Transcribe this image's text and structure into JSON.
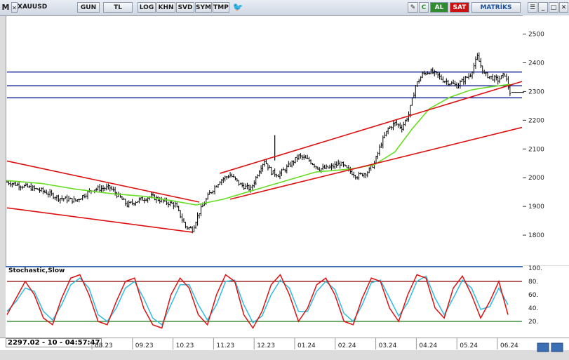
{
  "toolbar": {
    "logo": "M",
    "symbol": "XAUUSD",
    "period": "GUN",
    "currency": "TL",
    "buttons": [
      "LOG",
      "KHN",
      "SVD",
      "SYM",
      "TMP"
    ],
    "buy": "AL",
    "sell": "SAT",
    "brand": "MATRİKS"
  },
  "colors": {
    "buy": "#2e8b2e",
    "sell": "#cc1111",
    "channel": "#dd1111",
    "support": "#1f2a9a",
    "ma": "#66dd22",
    "stoch_k": "#dd1111",
    "stoch_d": "#33bbdd"
  },
  "status": {
    "readout": "2297.02 - 10 - 04:57:47"
  },
  "chart_data": [
    {
      "type": "candlestick",
      "title": "XAUUSD",
      "ylim": [
        1700,
        2560
      ],
      "y_ticks": [
        1800,
        1900,
        2000,
        2100,
        2200,
        2300,
        2400,
        2500
      ],
      "x_ticks": [
        "08.23",
        "09.23",
        "10.23",
        "11.23",
        "12.23",
        "01.24",
        "02.24",
        "03.24",
        "04.24",
        "05.24",
        "06.24"
      ],
      "last_price": 2297.02,
      "horizontal_levels": [
        2368,
        2320,
        2278
      ],
      "close_path": [
        [
          0,
          1985
        ],
        [
          10,
          1970
        ],
        [
          20,
          1955
        ],
        [
          30,
          1930
        ],
        [
          40,
          1920
        ],
        [
          50,
          1960
        ],
        [
          60,
          1965
        ],
        [
          66,
          1930
        ],
        [
          70,
          1905
        ],
        [
          76,
          1920
        ],
        [
          84,
          1935
        ],
        [
          90,
          1920
        ],
        [
          98,
          1905
        ],
        [
          104,
          1830
        ],
        [
          108,
          1820
        ],
        [
          112,
          1880
        ],
        [
          118,
          1945
        ],
        [
          124,
          1990
        ],
        [
          130,
          2010
        ],
        [
          136,
          1975
        ],
        [
          142,
          1960
        ],
        [
          148,
          2040
        ],
        [
          150,
          2060
        ],
        [
          154,
          2020
        ],
        [
          158,
          2010
        ],
        [
          164,
          2040
        ],
        [
          170,
          2075
        ],
        [
          176,
          2060
        ],
        [
          182,
          2030
        ],
        [
          188,
          2035
        ],
        [
          194,
          2050
        ],
        [
          198,
          2030
        ],
        [
          204,
          2005
        ],
        [
          210,
          2020
        ],
        [
          214,
          2050
        ],
        [
          218,
          2120
        ],
        [
          222,
          2170
        ],
        [
          226,
          2190
        ],
        [
          230,
          2175
        ],
        [
          234,
          2220
        ],
        [
          238,
          2320
        ],
        [
          242,
          2360
        ],
        [
          246,
          2370
        ],
        [
          250,
          2360
        ],
        [
          254,
          2340
        ],
        [
          258,
          2330
        ],
        [
          262,
          2320
        ],
        [
          266,
          2340
        ],
        [
          270,
          2360
        ],
        [
          274,
          2420
        ],
        [
          278,
          2360
        ],
        [
          282,
          2350
        ],
        [
          286,
          2340
        ],
        [
          290,
          2360
        ],
        [
          293,
          2297
        ]
      ],
      "x_range": [
        0,
        300
      ],
      "trend_channels": [
        {
          "name": "down-channel-upper",
          "points": [
            [
              0,
              2058
            ],
            [
              112,
              1915
            ]
          ]
        },
        {
          "name": "down-channel-lower",
          "points": [
            [
              0,
              1895
            ],
            [
              108,
              1810
            ]
          ]
        },
        {
          "name": "up-channel-upper",
          "points": [
            [
              124,
              2015
            ],
            [
              300,
              2335
            ]
          ]
        },
        {
          "name": "up-channel-lower",
          "points": [
            [
              130,
              1925
            ],
            [
              300,
              2175
            ]
          ]
        }
      ],
      "moving_average": [
        [
          0,
          1990
        ],
        [
          20,
          1980
        ],
        [
          40,
          1960
        ],
        [
          60,
          1945
        ],
        [
          80,
          1935
        ],
        [
          96,
          1920
        ],
        [
          110,
          1905
        ],
        [
          126,
          1925
        ],
        [
          140,
          1950
        ],
        [
          160,
          1985
        ],
        [
          180,
          2020
        ],
        [
          200,
          2030
        ],
        [
          214,
          2045
        ],
        [
          226,
          2090
        ],
        [
          236,
          2170
        ],
        [
          246,
          2240
        ],
        [
          258,
          2280
        ],
        [
          270,
          2305
        ],
        [
          280,
          2315
        ],
        [
          293,
          2325
        ]
      ]
    },
    {
      "type": "line",
      "title": "Stochastic,Slow",
      "ylim": [
        0,
        100
      ],
      "y_ticks": [
        20,
        40,
        60,
        80,
        100
      ],
      "levels": [
        80,
        20
      ],
      "series": [
        {
          "values": [
            30,
            55,
            80,
            60,
            25,
            15,
            55,
            85,
            90,
            60,
            20,
            15,
            50,
            80,
            85,
            40,
            15,
            10,
            60,
            85,
            70,
            30,
            15,
            60,
            90,
            80,
            30,
            10,
            35,
            75,
            90,
            60,
            20,
            40,
            75,
            85,
            60,
            20,
            15,
            55,
            85,
            80,
            40,
            20,
            60,
            90,
            85,
            40,
            25,
            70,
            88,
            60,
            25,
            50,
            80,
            30
          ]
        },
        {
          "values": [
            35,
            50,
            70,
            65,
            35,
            22,
            45,
            75,
            85,
            70,
            30,
            20,
            40,
            70,
            80,
            55,
            25,
            15,
            45,
            75,
            75,
            45,
            22,
            45,
            80,
            82,
            45,
            18,
            28,
            60,
            82,
            70,
            35,
            35,
            65,
            80,
            68,
            32,
            20,
            45,
            78,
            82,
            55,
            28,
            48,
            80,
            88,
            55,
            30,
            55,
            82,
            70,
            38,
            42,
            70,
            45
          ]
        }
      ]
    }
  ]
}
